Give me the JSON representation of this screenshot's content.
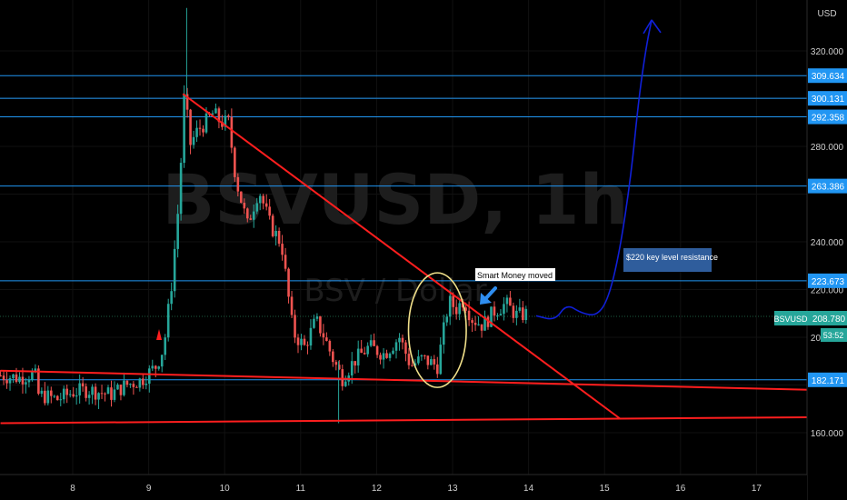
{
  "chart_data": {
    "type": "candlestick",
    "watermark": {
      "symbol": "BSVUSD, 1h",
      "description": "BSV / Dollar"
    },
    "currency_label": "USD",
    "y_ticks": [
      160,
      180,
      200,
      220,
      240,
      260,
      280,
      300,
      320
    ],
    "x_ticks": [
      "8",
      "9",
      "10",
      "11",
      "12",
      "13",
      "14",
      "15",
      "16",
      "17"
    ],
    "x_range_days": [
      7.05,
      17.7
    ],
    "y_range": [
      146,
      345
    ],
    "horizontal_levels": [
      {
        "label": "309.634",
        "value": 309.634,
        "color": "#2196f3"
      },
      {
        "label": "300.131",
        "value": 300.131,
        "color": "#2196f3"
      },
      {
        "label": "292.358",
        "value": 292.358,
        "color": "#2196f3"
      },
      {
        "label": "263.386",
        "value": 263.386,
        "color": "#2196f3"
      },
      {
        "label": "223.673",
        "value": 223.673,
        "color": "#2196f3"
      },
      {
        "label": "182.171",
        "value": 182.171,
        "color": "#2196f3"
      }
    ],
    "current_price": {
      "symbol": "BSVUSD",
      "label": "208.780",
      "value": 208.78,
      "countdown": "53:52",
      "color": "#26a69a"
    },
    "trendlines": [
      {
        "x": [
          9.45,
          15.2
        ],
        "y": [
          302,
          166
        ],
        "color": "#ff1e1e"
      },
      {
        "x": [
          7.05,
          17.7
        ],
        "y": [
          186,
          178
        ],
        "color": "#ff1e1e"
      },
      {
        "x": [
          7.05,
          17.7
        ],
        "y": [
          164,
          166.5
        ],
        "color": "#ff1e1e"
      }
    ],
    "projection_path": [
      [
        14.1,
        209
      ],
      [
        14.35,
        207
      ],
      [
        14.5,
        214
      ],
      [
        14.7,
        210
      ],
      [
        14.9,
        209
      ],
      [
        15.05,
        216
      ],
      [
        15.2,
        236
      ],
      [
        15.35,
        268
      ],
      [
        15.45,
        300
      ],
      [
        15.55,
        322
      ],
      [
        15.62,
        333
      ]
    ],
    "projection_color": "#1020d8",
    "annotations": [
      {
        "text": "Smart Money moved in",
        "x": 13.3,
        "y": 225
      },
      {
        "text": "$220 key level resistance",
        "x": 15.3,
        "y": 238
      }
    ],
    "ellipse": {
      "cx": 12.8,
      "cy": 203,
      "rx": 0.38,
      "ry": 24,
      "color": "#f1e08a"
    },
    "price_path": [
      [
        7.05,
        184
      ],
      [
        7.3,
        183
      ],
      [
        7.5,
        185
      ],
      [
        7.55,
        176
      ],
      [
        7.8,
        174
      ],
      [
        8.0,
        177
      ],
      [
        8.2,
        178
      ],
      [
        8.5,
        176
      ],
      [
        8.7,
        180
      ],
      [
        8.9,
        182
      ],
      [
        9.1,
        188
      ],
      [
        9.2,
        196
      ],
      [
        9.3,
        222
      ],
      [
        9.4,
        258
      ],
      [
        9.47,
        302
      ],
      [
        9.55,
        281
      ],
      [
        9.65,
        287
      ],
      [
        9.75,
        290
      ],
      [
        9.85,
        294
      ],
      [
        9.95,
        290
      ],
      [
        10.05,
        290
      ],
      [
        10.15,
        266
      ],
      [
        10.3,
        247
      ],
      [
        10.45,
        262
      ],
      [
        10.6,
        247
      ],
      [
        10.75,
        239
      ],
      [
        10.9,
        202
      ],
      [
        11.05,
        196
      ],
      [
        11.2,
        207
      ],
      [
        11.3,
        201
      ],
      [
        11.45,
        189
      ],
      [
        11.55,
        183
      ],
      [
        11.7,
        190
      ],
      [
        11.9,
        196
      ],
      [
        12.1,
        193
      ],
      [
        12.3,
        200
      ],
      [
        12.45,
        188
      ],
      [
        12.6,
        191
      ],
      [
        12.8,
        188
      ],
      [
        12.95,
        215
      ],
      [
        13.05,
        212
      ],
      [
        13.15,
        216
      ],
      [
        13.25,
        208
      ],
      [
        13.4,
        205
      ],
      [
        13.55,
        211
      ],
      [
        13.7,
        214
      ],
      [
        13.85,
        209
      ],
      [
        14.0,
        210
      ]
    ]
  }
}
